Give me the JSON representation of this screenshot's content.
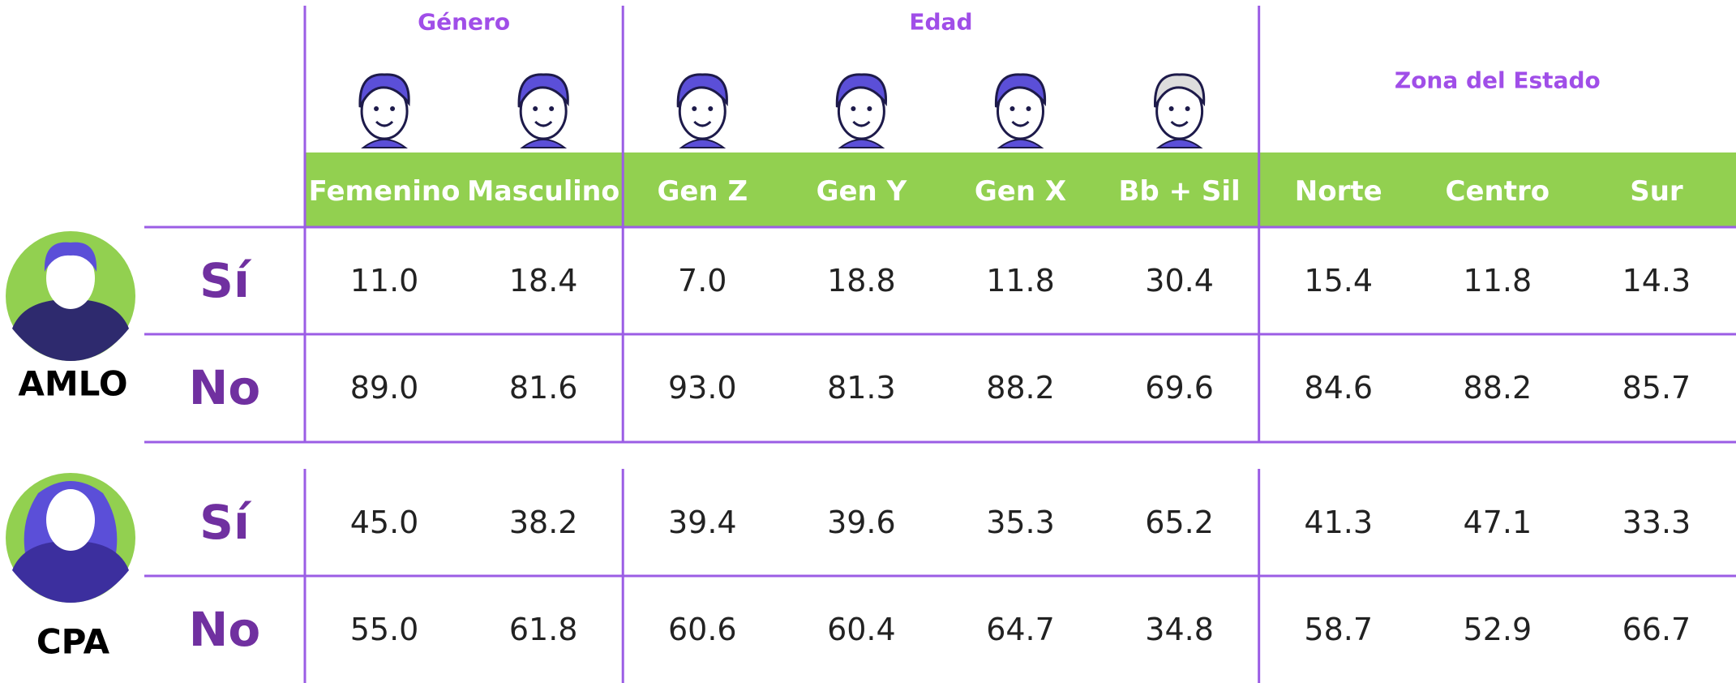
{
  "groups": [
    {
      "label": "Género",
      "span": 2
    },
    {
      "label": "Edad",
      "span": 4
    },
    {
      "label": "Zona del Estado",
      "span": 3
    }
  ],
  "columns": [
    "Femenino",
    "Masculino",
    "Gen Z",
    "Gen Y",
    "Gen X",
    "Bb + Sil",
    "Norte",
    "Centro",
    "Sur"
  ],
  "blocks": [
    {
      "name": "AMLO",
      "rows": [
        {
          "label": "Sí",
          "values": [
            "11.0",
            "18.4",
            "7.0",
            "18.8",
            "11.8",
            "30.4",
            "15.4",
            "11.8",
            "14.3"
          ]
        },
        {
          "label": "No",
          "values": [
            "89.0",
            "81.6",
            "93.0",
            "81.3",
            "88.2",
            "69.6",
            "84.6",
            "88.2",
            "85.7"
          ]
        }
      ]
    },
    {
      "name": "CPA",
      "rows": [
        {
          "label": "Sí",
          "values": [
            "45.0",
            "38.2",
            "39.4",
            "39.6",
            "35.3",
            "65.2",
            "41.3",
            "47.1",
            "33.3"
          ]
        },
        {
          "label": "No",
          "values": [
            "55.0",
            "61.8",
            "60.6",
            "60.4",
            "64.7",
            "34.8",
            "58.7",
            "52.9",
            "66.7"
          ]
        }
      ]
    }
  ]
}
